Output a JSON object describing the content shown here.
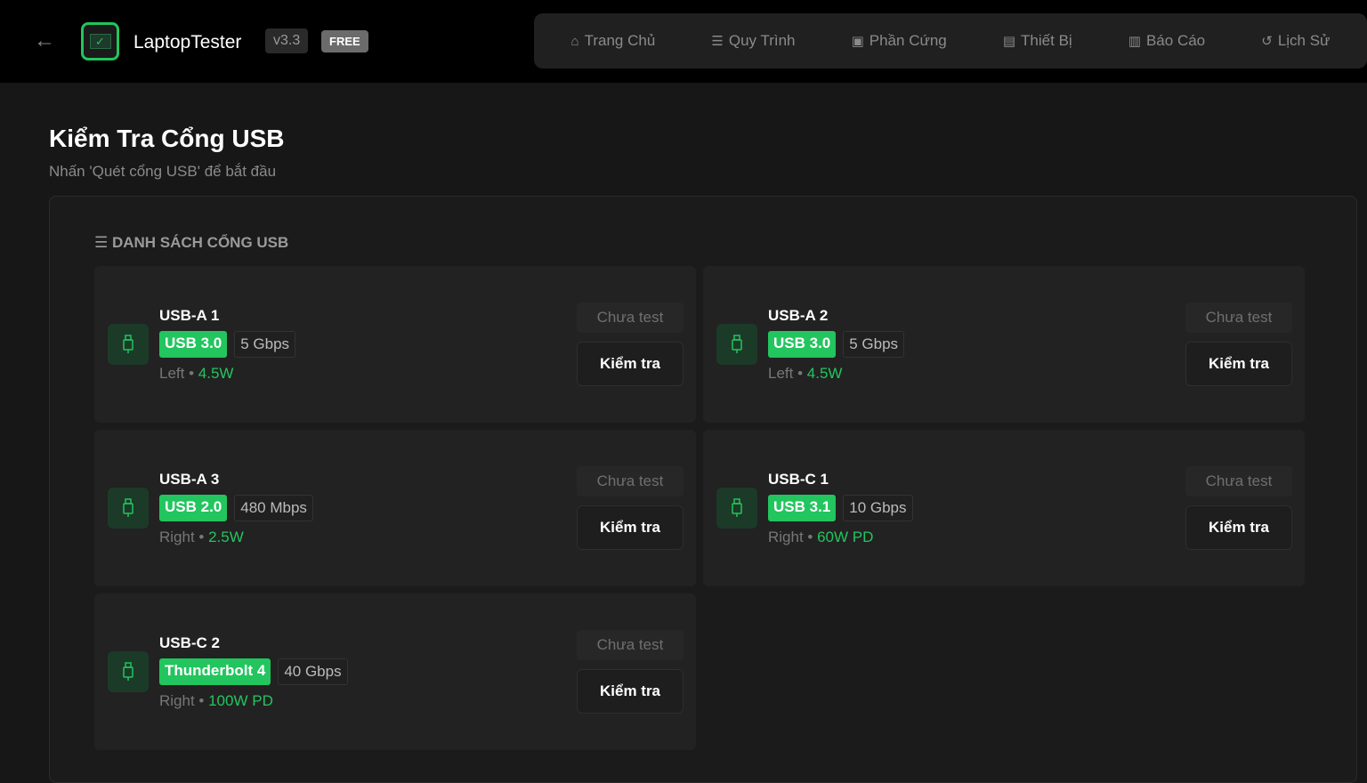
{
  "header": {
    "app_name": "LaptopTester",
    "version": "v3.3",
    "plan_badge": "FREE"
  },
  "nav": [
    {
      "label": "Trang Chủ",
      "icon": "home-icon",
      "glyph": "⌂"
    },
    {
      "label": "Quy Trình",
      "icon": "list-icon",
      "glyph": "☰"
    },
    {
      "label": "Phần Cứng",
      "icon": "chip-icon",
      "glyph": "▣"
    },
    {
      "label": "Thiết Bị",
      "icon": "devices-icon",
      "glyph": "▤"
    },
    {
      "label": "Báo Cáo",
      "icon": "report-icon",
      "glyph": "▥"
    },
    {
      "label": "Lịch Sử",
      "icon": "history-icon",
      "glyph": "↺"
    }
  ],
  "page": {
    "title": "Kiểm Tra Cổng USB",
    "subtitle": "Nhấn 'Quét cổng USB' để bắt đầu",
    "section_title": "☰ DANH SÁCH CỔNG USB"
  },
  "colors": {
    "accent": "#22c55e"
  },
  "ports": [
    {
      "name": "USB-A 1",
      "type": "USB 3.0",
      "speed": "5 Gbps",
      "side": "Left",
      "power": "4.5W",
      "status": "Chưa test",
      "action": "Kiểm tra"
    },
    {
      "name": "USB-A 2",
      "type": "USB 3.0",
      "speed": "5 Gbps",
      "side": "Left",
      "power": "4.5W",
      "status": "Chưa test",
      "action": "Kiểm tra"
    },
    {
      "name": "USB-A 3",
      "type": "USB 2.0",
      "speed": "480 Mbps",
      "side": "Right",
      "power": "2.5W",
      "status": "Chưa test",
      "action": "Kiểm tra"
    },
    {
      "name": "USB-C 1",
      "type": "USB 3.1",
      "speed": "10 Gbps",
      "side": "Right",
      "power": "60W PD",
      "status": "Chưa test",
      "action": "Kiểm tra"
    },
    {
      "name": "USB-C 2",
      "type": "Thunderbolt 4",
      "speed": "40 Gbps",
      "side": "Right",
      "power": "100W PD",
      "status": "Chưa test",
      "action": "Kiểm tra"
    }
  ]
}
